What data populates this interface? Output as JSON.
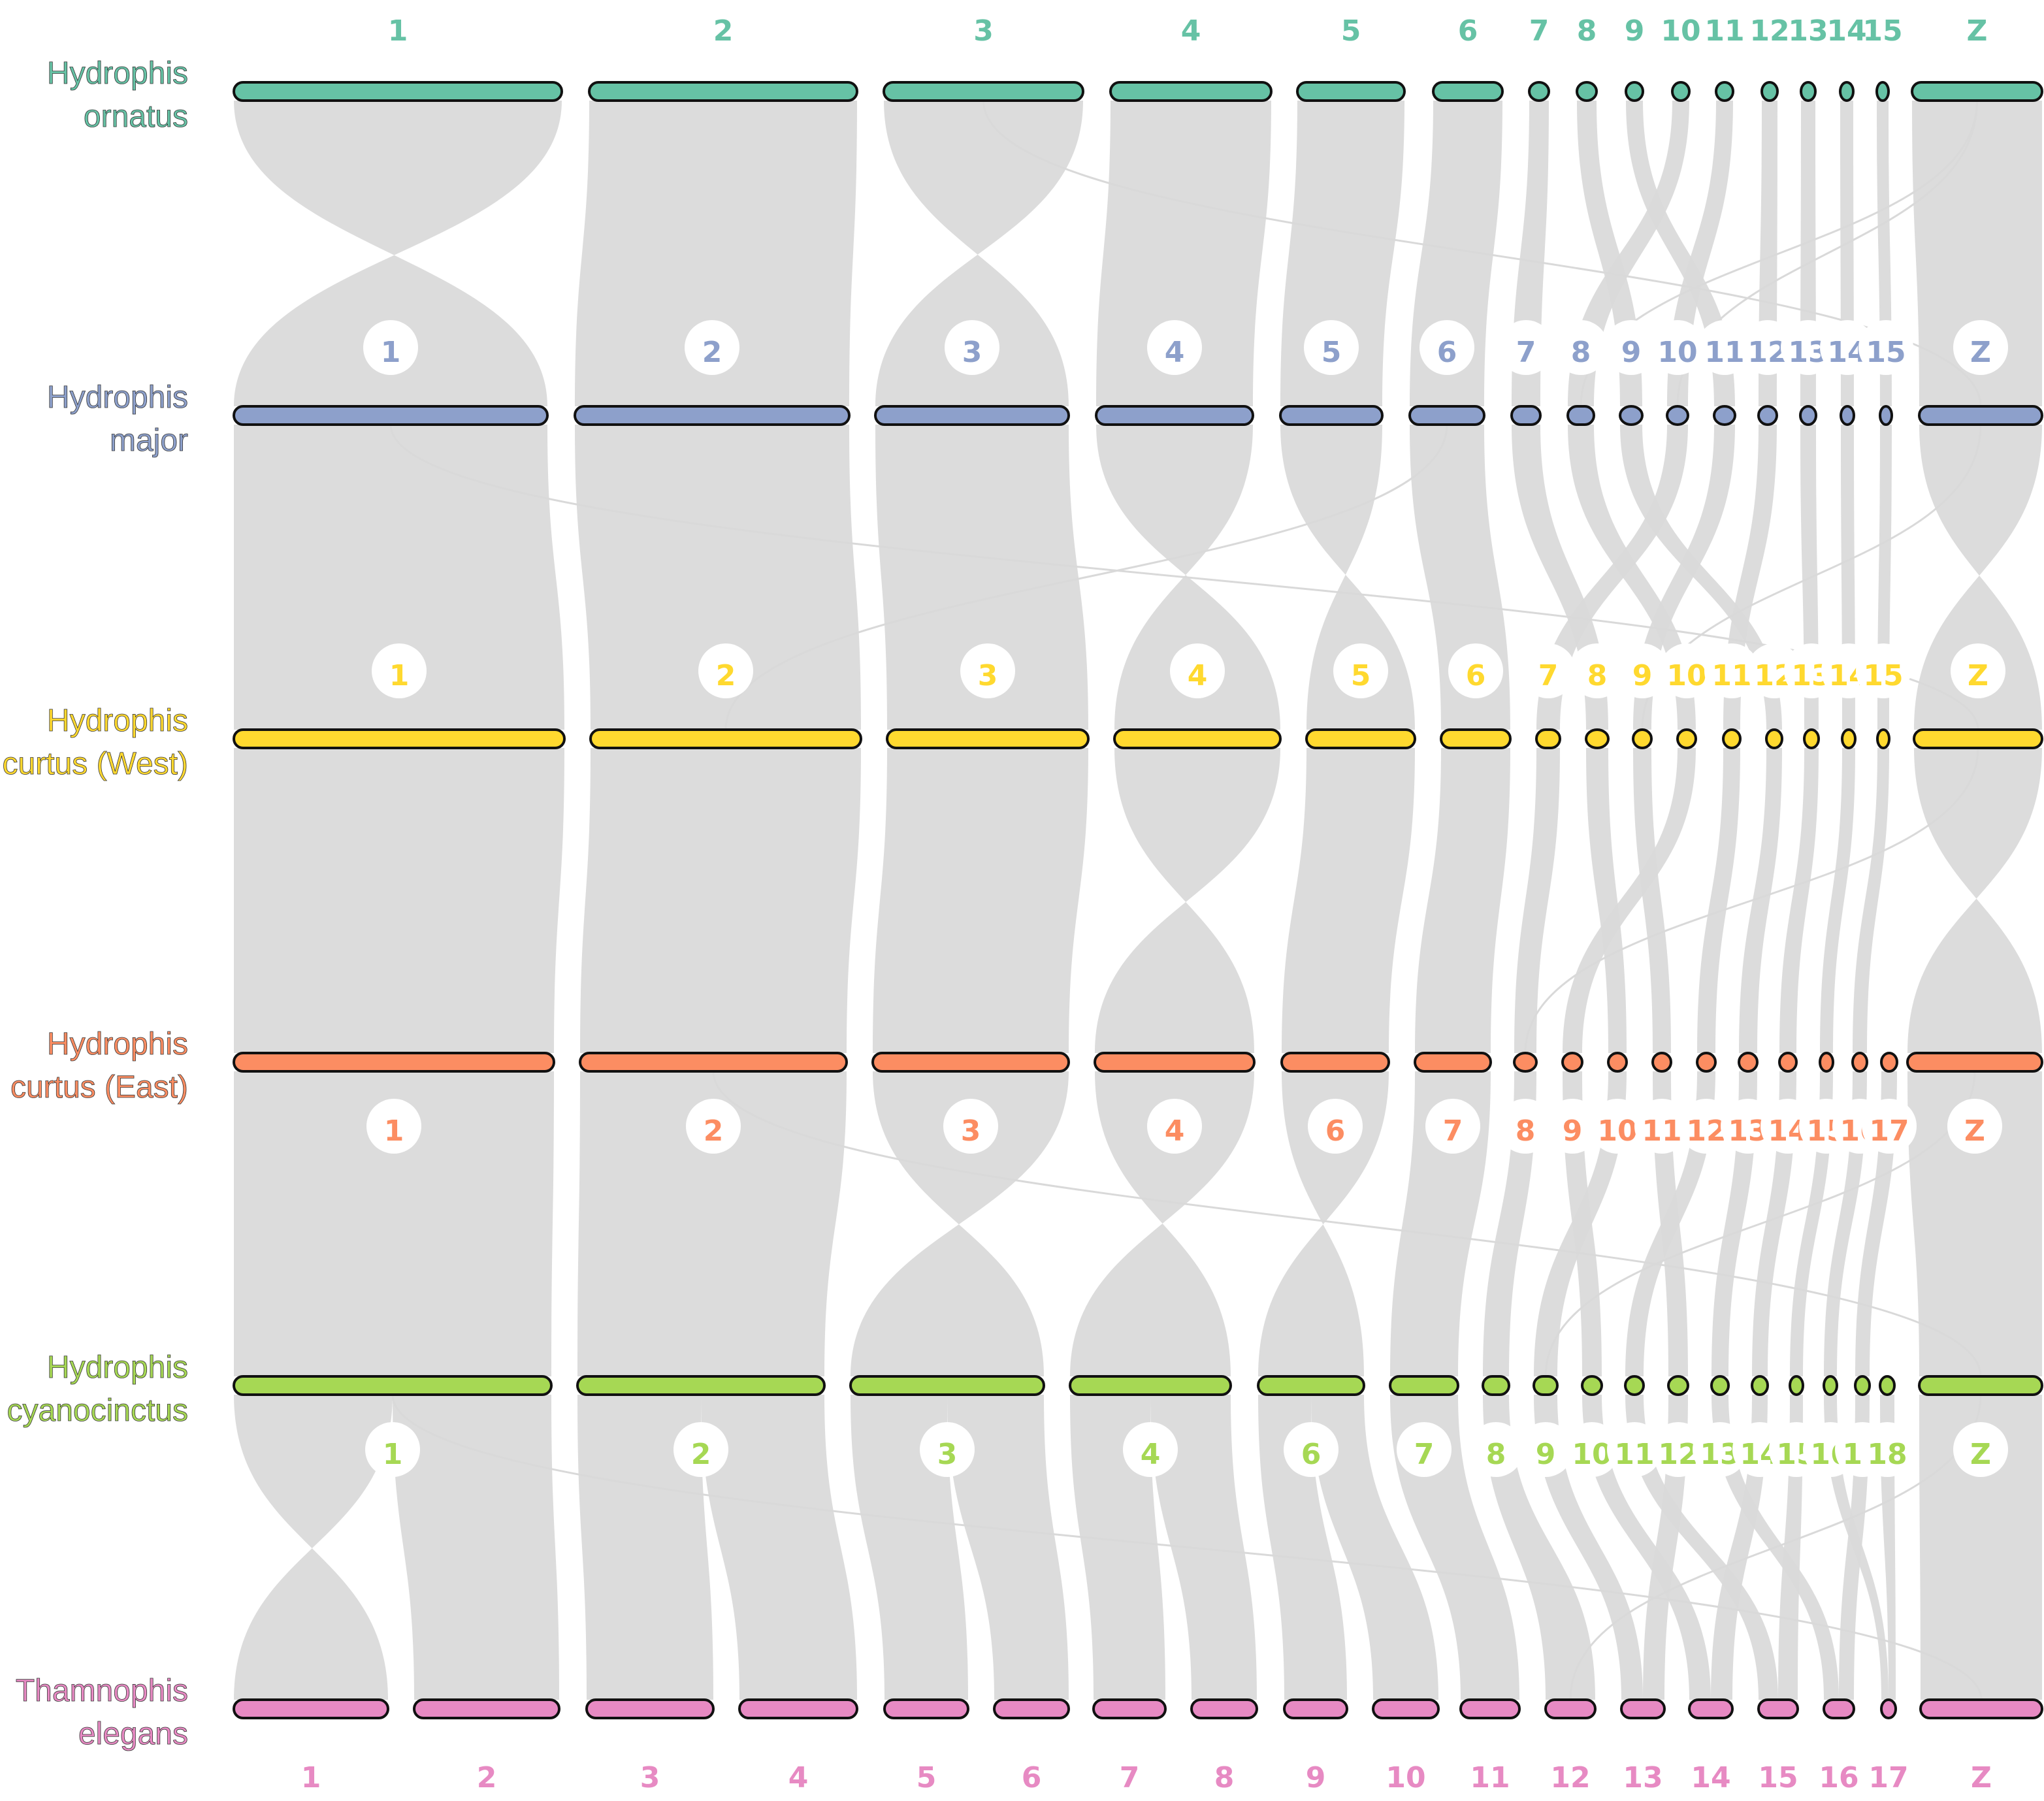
{
  "figure": {
    "colors": {
      "ribbon": "#d9d9d9",
      "outline": "#111111",
      "label_halo": "#ffffff"
    },
    "tracks": [
      {
        "id": "ornatus",
        "species": [
          "Hydrophis",
          "ornatus"
        ],
        "color": "#66c2a5",
        "labels_position": "above",
        "label_halo": false,
        "chromosomes": [
          "1",
          "2",
          "3",
          "4",
          "5",
          "6",
          "7",
          "8",
          "9",
          "10",
          "11",
          "12",
          "13",
          "14",
          "15",
          "Z"
        ]
      },
      {
        "id": "major",
        "species": [
          "Hydrophis",
          "major"
        ],
        "color": "#8da0cb",
        "labels_position": "above",
        "label_halo": true,
        "chromosomes": [
          "1",
          "2",
          "3",
          "4",
          "5",
          "6",
          "7",
          "8",
          "9",
          "10",
          "11",
          "12",
          "13",
          "14",
          "15",
          "Z"
        ]
      },
      {
        "id": "curtus_west",
        "species": [
          "Hydrophis",
          "curtus (West)"
        ],
        "color": "#ffd92f",
        "labels_position": "above",
        "label_halo": true,
        "chromosomes": [
          "1",
          "2",
          "3",
          "4",
          "5",
          "6",
          "7",
          "8",
          "9",
          "10",
          "11",
          "12",
          "13",
          "14",
          "15",
          "Z"
        ]
      },
      {
        "id": "curtus_east",
        "species": [
          "Hydrophis",
          "curtus (East)"
        ],
        "color": "#fc8d62",
        "labels_position": "below",
        "label_halo": true,
        "chromosomes": [
          "1",
          "2",
          "3",
          "4",
          "6",
          "7",
          "8",
          "9",
          "10",
          "11",
          "12",
          "13",
          "14",
          "15",
          "16",
          "17",
          "Z"
        ]
      },
      {
        "id": "cyanocinctus",
        "species": [
          "Hydrophis",
          "cyanocinctus"
        ],
        "color": "#a6d854",
        "labels_position": "below",
        "label_halo": true,
        "chromosomes": [
          "1",
          "2",
          "3",
          "4",
          "6",
          "7",
          "8",
          "9",
          "10",
          "11",
          "12",
          "13",
          "14",
          "15",
          "16",
          "17",
          "18",
          "Z"
        ]
      },
      {
        "id": "thamnophis",
        "species": [
          "Thamnophis",
          "elegans"
        ],
        "color": "#e78ac3",
        "labels_position": "below",
        "label_halo": false,
        "chromosomes": [
          "1",
          "2",
          "3",
          "4",
          "5",
          "6",
          "7",
          "8",
          "9",
          "10",
          "11",
          "12",
          "13",
          "14",
          "15",
          "16",
          "17",
          "Z"
        ]
      }
    ],
    "synteny": [
      {
        "from": "ornatus",
        "to": "major",
        "links": [
          [
            "1",
            "1",
            "inv"
          ],
          [
            "2",
            "2",
            "col"
          ],
          [
            "3",
            "3",
            "inv"
          ],
          [
            "4",
            "4",
            "col"
          ],
          [
            "5",
            "5",
            "col"
          ],
          [
            "6",
            "6",
            "col"
          ],
          [
            "7",
            "7",
            "col"
          ],
          [
            "8",
            "9",
            "col"
          ],
          [
            "9",
            "11",
            "col"
          ],
          [
            "10",
            "8",
            "col"
          ],
          [
            "11",
            "10",
            "col"
          ],
          [
            "12",
            "12",
            "col"
          ],
          [
            "13",
            "13",
            "col"
          ],
          [
            "14",
            "14",
            "col"
          ],
          [
            "15",
            "15",
            "col"
          ],
          [
            "Z",
            "Z",
            "col"
          ]
        ]
      },
      {
        "from": "major",
        "to": "curtus_west",
        "links": [
          [
            "1",
            "1",
            "col"
          ],
          [
            "2",
            "2",
            "col"
          ],
          [
            "3",
            "3",
            "col"
          ],
          [
            "4",
            "4",
            "inv"
          ],
          [
            "5",
            "5",
            "inv"
          ],
          [
            "6",
            "6",
            "col"
          ],
          [
            "7",
            "8",
            "col"
          ],
          [
            "8",
            "10",
            "col"
          ],
          [
            "9",
            "12",
            "col"
          ],
          [
            "10",
            "7",
            "col"
          ],
          [
            "11",
            "9",
            "col"
          ],
          [
            "12",
            "11",
            "col"
          ],
          [
            "13",
            "13",
            "col"
          ],
          [
            "14",
            "14",
            "col"
          ],
          [
            "15",
            "15",
            "col"
          ],
          [
            "Z",
            "Z",
            "inv"
          ]
        ]
      },
      {
        "from": "curtus_west",
        "to": "curtus_east",
        "links": [
          [
            "1",
            "1",
            "col"
          ],
          [
            "2",
            "2",
            "col"
          ],
          [
            "3",
            "3",
            "col"
          ],
          [
            "4",
            "4",
            "inv"
          ],
          [
            "5",
            "6",
            "col"
          ],
          [
            "6",
            "7",
            "col"
          ],
          [
            "7",
            "8",
            "col"
          ],
          [
            "8",
            "10",
            "col"
          ],
          [
            "9",
            "11",
            "col"
          ],
          [
            "10",
            "9",
            "col"
          ],
          [
            "11",
            "12",
            "col"
          ],
          [
            "12",
            "13",
            "col"
          ],
          [
            "13",
            "14",
            "col"
          ],
          [
            "14",
            "15",
            "col"
          ],
          [
            "15",
            "16",
            "col"
          ],
          [
            "Z",
            "Z",
            "inv"
          ]
        ]
      },
      {
        "from": "curtus_east",
        "to": "cyanocinctus",
        "links": [
          [
            "1",
            "1",
            "col"
          ],
          [
            "2",
            "2",
            "col"
          ],
          [
            "3",
            "3",
            "inv"
          ],
          [
            "4",
            "4",
            "inv"
          ],
          [
            "6",
            "6",
            "inv"
          ],
          [
            "7",
            "7",
            "col"
          ],
          [
            "8",
            "8",
            "col"
          ],
          [
            "9",
            "10",
            "col"
          ],
          [
            "10",
            "9",
            "col"
          ],
          [
            "11",
            "12",
            "col"
          ],
          [
            "12",
            "11",
            "col"
          ],
          [
            "13",
            "13",
            "col"
          ],
          [
            "14",
            "14",
            "col"
          ],
          [
            "15",
            "15",
            "col"
          ],
          [
            "16",
            "16",
            "col"
          ],
          [
            "17",
            "17",
            "col"
          ],
          [
            "Z",
            "Z",
            "col"
          ]
        ]
      },
      {
        "from": "cyanocinctus",
        "to": "thamnophis",
        "links": [
          [
            "1",
            "1",
            "inv"
          ],
          [
            "1",
            "2",
            "col"
          ],
          [
            "2",
            "3",
            "col"
          ],
          [
            "2",
            "4",
            "col"
          ],
          [
            "3",
            "5",
            "col"
          ],
          [
            "3",
            "6",
            "col"
          ],
          [
            "4",
            "7",
            "col"
          ],
          [
            "4",
            "8",
            "col"
          ],
          [
            "6",
            "9",
            "col"
          ],
          [
            "6",
            "10",
            "col"
          ],
          [
            "7",
            "11",
            "col"
          ],
          [
            "8",
            "12",
            "col"
          ],
          [
            "9",
            "13",
            "col"
          ],
          [
            "10",
            "14",
            "col"
          ],
          [
            "11",
            "15",
            "col"
          ],
          [
            "12",
            "13",
            "col"
          ],
          [
            "13",
            "16",
            "col"
          ],
          [
            "14",
            "14",
            "col"
          ],
          [
            "15",
            "15",
            "col"
          ],
          [
            "16",
            "17",
            "col"
          ],
          [
            "17",
            "16",
            "col"
          ],
          [
            "18",
            "17",
            "col"
          ],
          [
            "Z",
            "Z",
            "col"
          ]
        ]
      }
    ]
  }
}
